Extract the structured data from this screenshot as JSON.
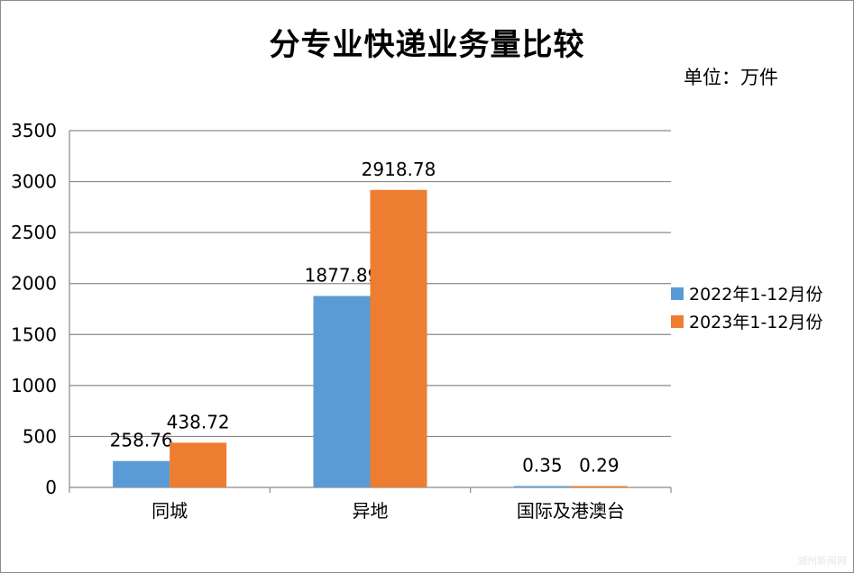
{
  "chart_data": {
    "type": "bar",
    "title": "分专业快递业务量比较",
    "unit_label": "单位：万件",
    "categories": [
      "同城",
      "异地",
      "国际及港澳台"
    ],
    "series": [
      {
        "name": "2022年1-12月份",
        "values": [
          258.76,
          1877.89,
          0.35
        ],
        "labels": [
          "258.76",
          "1877.89",
          "0.35"
        ],
        "color": "#5b9bd5"
      },
      {
        "name": "2023年1-12月份",
        "values": [
          438.72,
          2918.78,
          0.29
        ],
        "labels": [
          "438.72",
          "2918.78",
          "0.29"
        ],
        "color": "#ed7d31"
      }
    ],
    "yticks": [
      "0",
      "500",
      "1000",
      "1500",
      "2000",
      "2500",
      "3000",
      "3500"
    ],
    "ylim": [
      0,
      3500
    ],
    "grid": true,
    "legend_position": "right"
  },
  "watermark": "湖州新闻网"
}
